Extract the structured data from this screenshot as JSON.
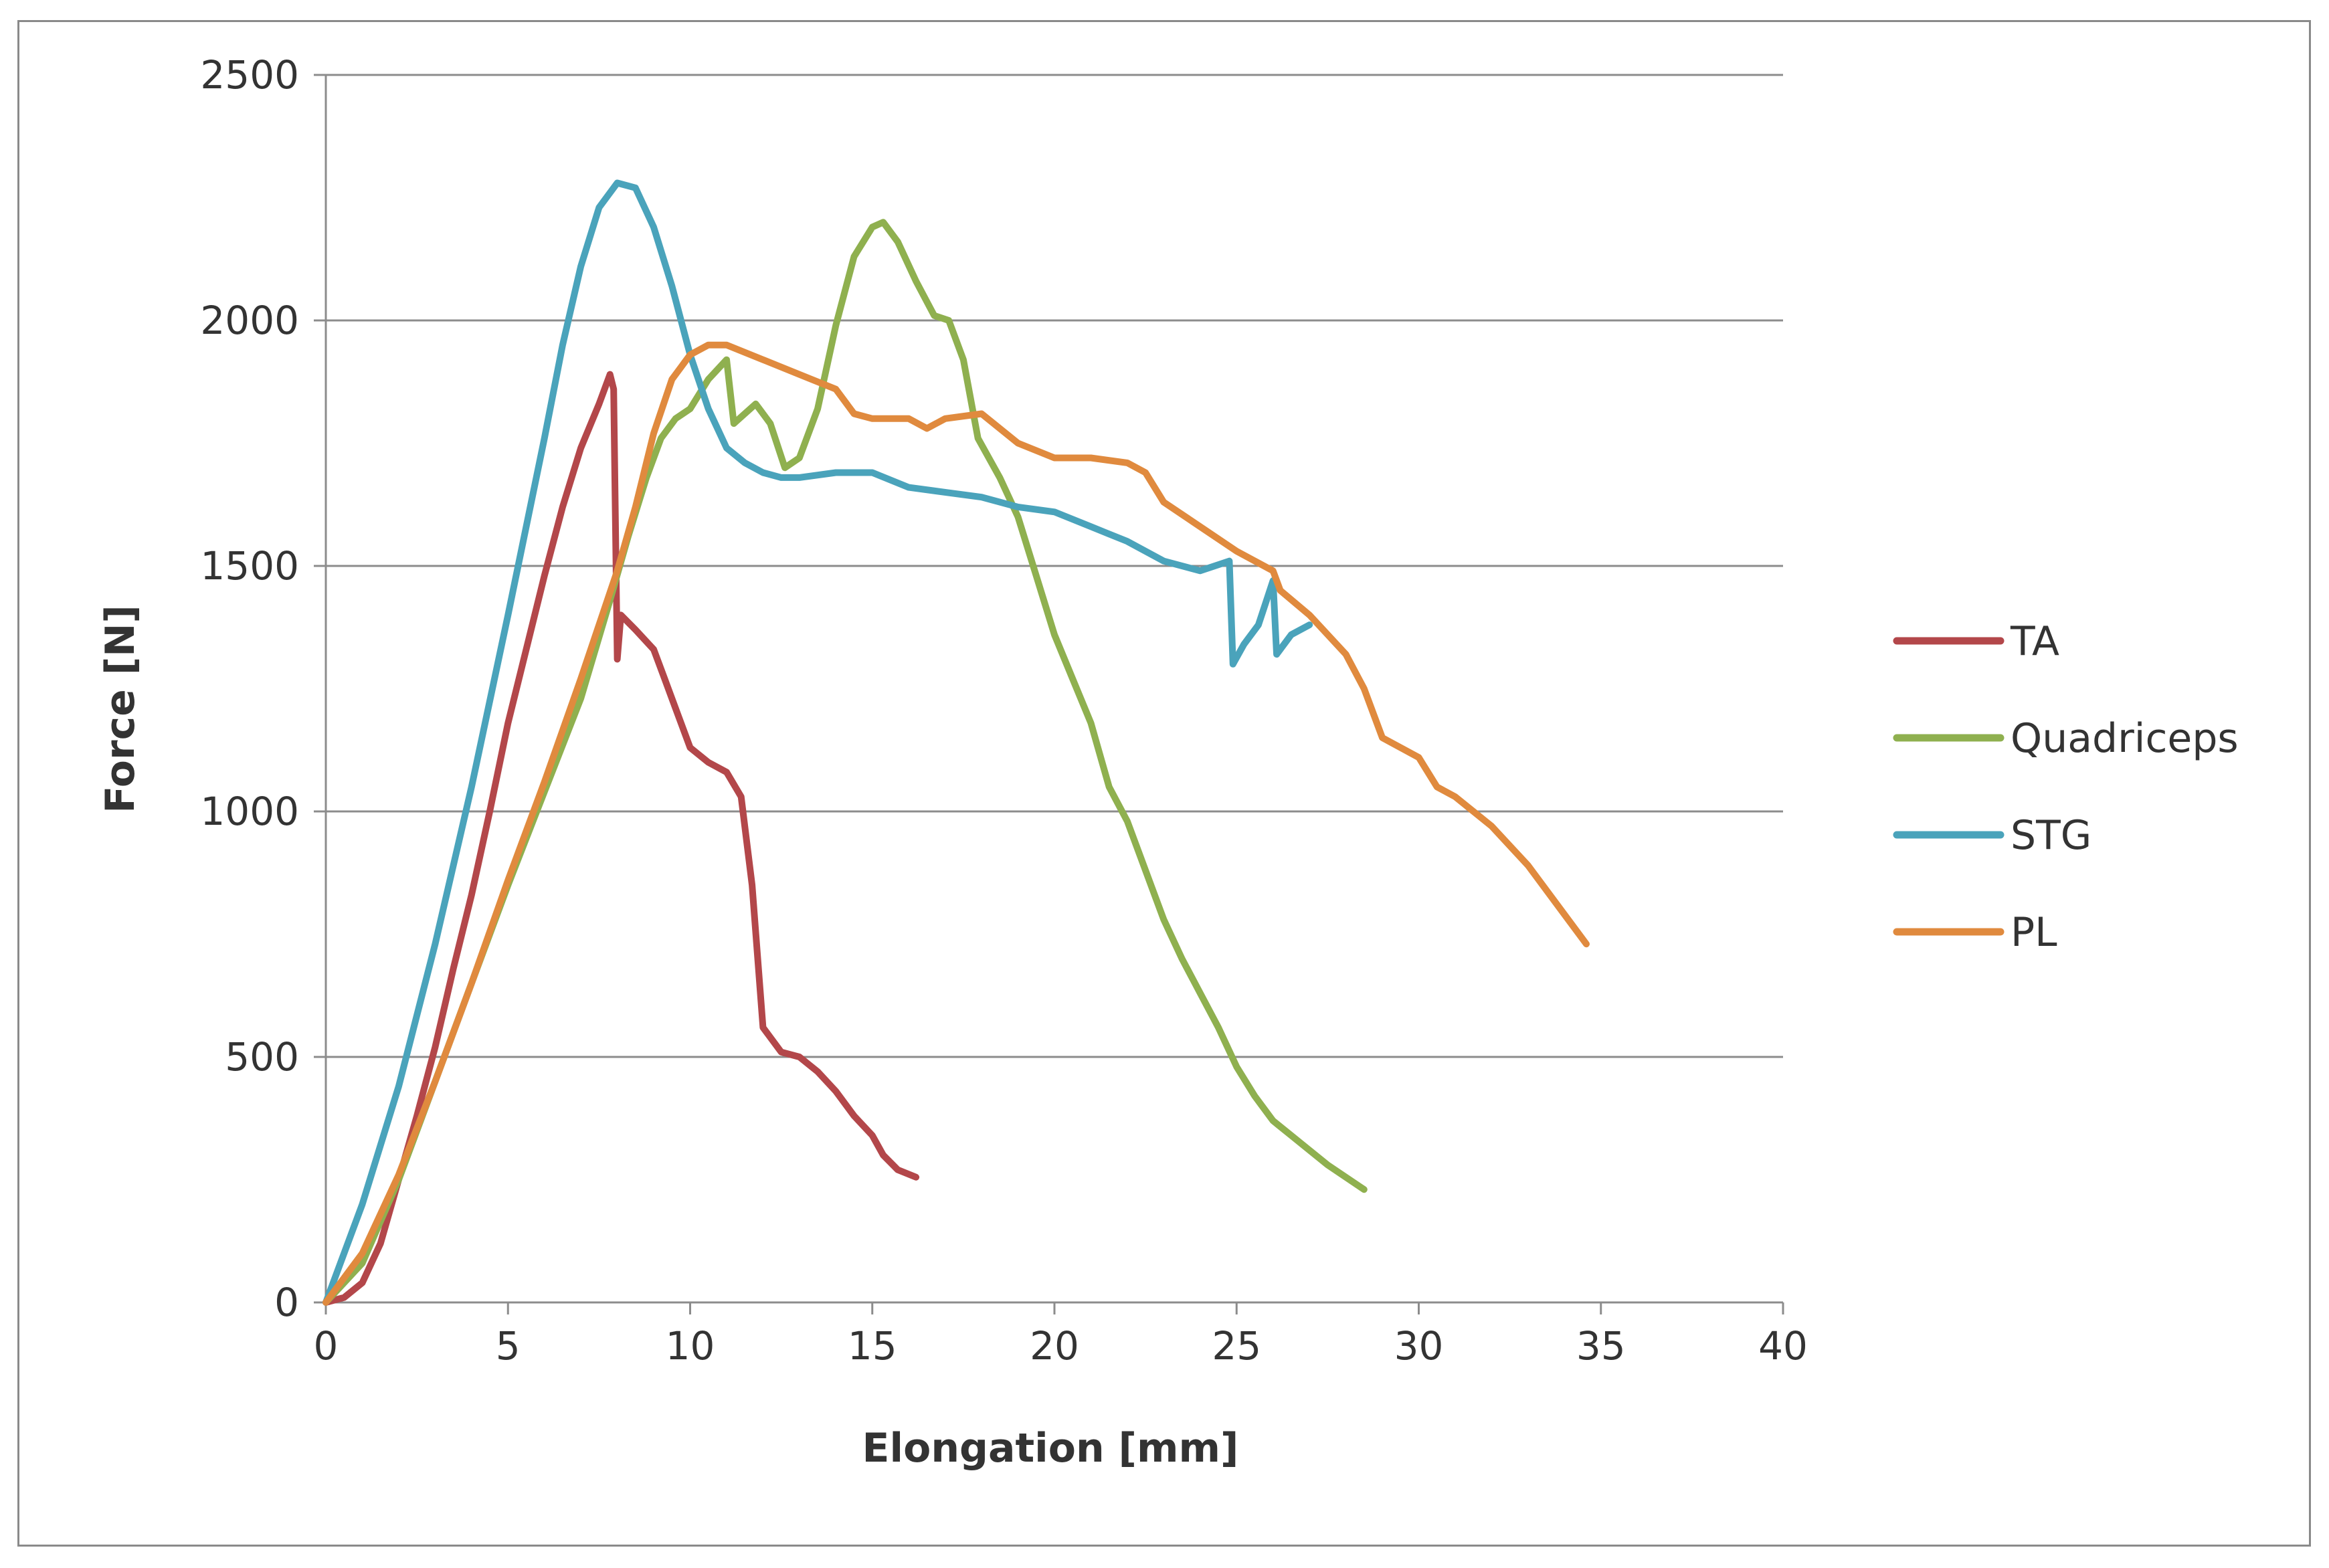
{
  "chart_data": {
    "type": "line",
    "title": "",
    "xlabel": "Elongation  [mm]",
    "ylabel": "Force [N]",
    "xlim": [
      0,
      40
    ],
    "ylim": [
      0,
      2500
    ],
    "xticks": [
      0,
      5,
      10,
      15,
      20,
      25,
      30,
      35,
      40
    ],
    "yticks": [
      0,
      500,
      1000,
      1500,
      2000,
      2500
    ],
    "grid": "horizontal",
    "legend_position": "right",
    "series": [
      {
        "name": "TA",
        "color": "#b3474a",
        "points": [
          [
            0,
            0
          ],
          [
            0.5,
            10
          ],
          [
            1,
            40
          ],
          [
            1.5,
            120
          ],
          [
            2,
            250
          ],
          [
            2.5,
            380
          ],
          [
            3,
            520
          ],
          [
            3.5,
            680
          ],
          [
            4,
            830
          ],
          [
            4.5,
            1000
          ],
          [
            5,
            1180
          ],
          [
            5.5,
            1330
          ],
          [
            6,
            1480
          ],
          [
            6.5,
            1620
          ],
          [
            7,
            1740
          ],
          [
            7.5,
            1830
          ],
          [
            7.8,
            1890
          ],
          [
            7.9,
            1860
          ],
          [
            8,
            1310
          ],
          [
            8.1,
            1400
          ],
          [
            8.5,
            1370
          ],
          [
            9,
            1330
          ],
          [
            9.3,
            1270
          ],
          [
            9.6,
            1210
          ],
          [
            10,
            1130
          ],
          [
            10.5,
            1100
          ],
          [
            11,
            1080
          ],
          [
            11.4,
            1030
          ],
          [
            11.7,
            850
          ],
          [
            12,
            560
          ],
          [
            12.5,
            510
          ],
          [
            13,
            500
          ],
          [
            13.5,
            470
          ],
          [
            14,
            430
          ],
          [
            14.5,
            380
          ],
          [
            15,
            340
          ],
          [
            15.3,
            300
          ],
          [
            15.7,
            270
          ],
          [
            16.2,
            255
          ]
        ]
      },
      {
        "name": "Quadriceps",
        "color": "#8fb04f",
        "points": [
          [
            0,
            0
          ],
          [
            1,
            80
          ],
          [
            2,
            250
          ],
          [
            3,
            450
          ],
          [
            4,
            650
          ],
          [
            5,
            850
          ],
          [
            6,
            1040
          ],
          [
            7,
            1230
          ],
          [
            7.8,
            1430
          ],
          [
            8.3,
            1560
          ],
          [
            8.8,
            1680
          ],
          [
            9.2,
            1760
          ],
          [
            9.6,
            1800
          ],
          [
            10,
            1820
          ],
          [
            10.5,
            1880
          ],
          [
            11,
            1920
          ],
          [
            11.2,
            1790
          ],
          [
            11.8,
            1830
          ],
          [
            12.2,
            1790
          ],
          [
            12.6,
            1700
          ],
          [
            13,
            1720
          ],
          [
            13.5,
            1820
          ],
          [
            14,
            1990
          ],
          [
            14.5,
            2130
          ],
          [
            15,
            2190
          ],
          [
            15.3,
            2200
          ],
          [
            15.7,
            2160
          ],
          [
            16.2,
            2080
          ],
          [
            16.7,
            2010
          ],
          [
            17.1,
            2000
          ],
          [
            17.5,
            1920
          ],
          [
            17.9,
            1760
          ],
          [
            18.5,
            1680
          ],
          [
            19,
            1600
          ],
          [
            19.5,
            1480
          ],
          [
            20,
            1360
          ],
          [
            20.5,
            1270
          ],
          [
            21,
            1180
          ],
          [
            21.5,
            1050
          ],
          [
            22,
            980
          ],
          [
            22.5,
            880
          ],
          [
            23,
            780
          ],
          [
            23.5,
            700
          ],
          [
            24,
            630
          ],
          [
            24.5,
            560
          ],
          [
            25,
            480
          ],
          [
            25.5,
            420
          ],
          [
            26,
            370
          ],
          [
            26.5,
            340
          ],
          [
            27,
            310
          ],
          [
            27.5,
            280
          ],
          [
            28.5,
            230
          ]
        ]
      },
      {
        "name": "STG",
        "color": "#4aa3bb",
        "points": [
          [
            0,
            0
          ],
          [
            1,
            200
          ],
          [
            2,
            440
          ],
          [
            3,
            730
          ],
          [
            4,
            1050
          ],
          [
            5,
            1400
          ],
          [
            6,
            1760
          ],
          [
            6.5,
            1950
          ],
          [
            7,
            2110
          ],
          [
            7.5,
            2230
          ],
          [
            8,
            2280
          ],
          [
            8.5,
            2270
          ],
          [
            9,
            2190
          ],
          [
            9.5,
            2070
          ],
          [
            10,
            1930
          ],
          [
            10.5,
            1820
          ],
          [
            11,
            1740
          ],
          [
            11.5,
            1710
          ],
          [
            12,
            1690
          ],
          [
            12.5,
            1680
          ],
          [
            13,
            1680
          ],
          [
            14,
            1690
          ],
          [
            15,
            1690
          ],
          [
            16,
            1660
          ],
          [
            17,
            1650
          ],
          [
            18,
            1640
          ],
          [
            19,
            1620
          ],
          [
            20,
            1610
          ],
          [
            21,
            1580
          ],
          [
            22,
            1550
          ],
          [
            23,
            1510
          ],
          [
            24,
            1490
          ],
          [
            24.8,
            1510
          ],
          [
            24.9,
            1300
          ],
          [
            25.2,
            1340
          ],
          [
            25.6,
            1380
          ],
          [
            26,
            1470
          ],
          [
            26.1,
            1320
          ],
          [
            26.5,
            1360
          ],
          [
            27,
            1380
          ]
        ]
      },
      {
        "name": "PL",
        "color": "#e08a3e",
        "points": [
          [
            0,
            0
          ],
          [
            1,
            100
          ],
          [
            2,
            260
          ],
          [
            3,
            450
          ],
          [
            4,
            650
          ],
          [
            5,
            860
          ],
          [
            6,
            1060
          ],
          [
            7,
            1270
          ],
          [
            8,
            1490
          ],
          [
            8.5,
            1620
          ],
          [
            9,
            1770
          ],
          [
            9.5,
            1880
          ],
          [
            10,
            1930
          ],
          [
            10.5,
            1950
          ],
          [
            11,
            1950
          ],
          [
            12,
            1920
          ],
          [
            13,
            1890
          ],
          [
            14,
            1860
          ],
          [
            14.5,
            1810
          ],
          [
            15,
            1800
          ],
          [
            16,
            1800
          ],
          [
            16.5,
            1780
          ],
          [
            17,
            1800
          ],
          [
            18,
            1810
          ],
          [
            18.5,
            1780
          ],
          [
            19,
            1750
          ],
          [
            20,
            1720
          ],
          [
            21,
            1720
          ],
          [
            22,
            1710
          ],
          [
            22.5,
            1690
          ],
          [
            23,
            1630
          ],
          [
            24,
            1580
          ],
          [
            25,
            1530
          ],
          [
            26,
            1490
          ],
          [
            26.2,
            1450
          ],
          [
            27,
            1400
          ],
          [
            28,
            1320
          ],
          [
            28.5,
            1250
          ],
          [
            29,
            1150
          ],
          [
            30,
            1110
          ],
          [
            30.5,
            1050
          ],
          [
            31,
            1030
          ],
          [
            32,
            970
          ],
          [
            33,
            890
          ],
          [
            34,
            790
          ],
          [
            34.6,
            730
          ]
        ]
      }
    ]
  }
}
